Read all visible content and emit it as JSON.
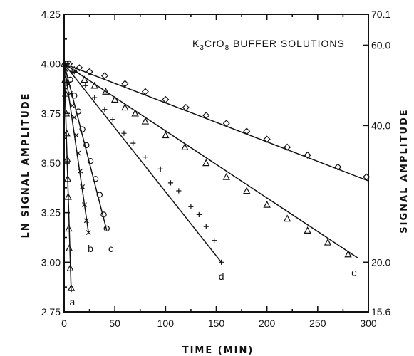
{
  "chart_data": {
    "type": "scatter",
    "title": "K3CrO8 BUFFER SOLUTIONS",
    "title_parts": {
      "k": "K",
      "sub3": "3",
      "cro": "CrO",
      "sub8": "8",
      "rest": " BUFFER SOLUTIONS"
    },
    "xlabel": "TIME (MIN)",
    "ylabel": "LN SIGNAL AMPLITUDE",
    "y2label": "SIGNAL AMPLITUDE",
    "xlim": [
      0,
      300
    ],
    "ylim": [
      2.75,
      4.25
    ],
    "x_ticks": [
      "0",
      "50",
      "100",
      "150",
      "200",
      "250",
      "300"
    ],
    "y_ticks": [
      "2.75",
      "3.00",
      "3.25",
      "3.50",
      "3.75",
      "4.00",
      "4.25"
    ],
    "y2_ticks": [
      {
        "label": "15.6",
        "ln": 2.75
      },
      {
        "label": "20.0",
        "ln": 3.0
      },
      {
        "label": "40.0",
        "ln": 3.689
      },
      {
        "label": "60.0",
        "ln": 4.094
      },
      {
        "label": "70.1",
        "ln": 4.25
      }
    ],
    "y2_scale": "log",
    "grid": false,
    "series": [
      {
        "label": "a",
        "marker": "triangle",
        "points": [
          [
            0,
            4.0
          ],
          [
            1,
            3.92
          ],
          [
            1.5,
            3.85
          ],
          [
            2,
            3.75
          ],
          [
            2.5,
            3.65
          ],
          [
            3,
            3.52
          ],
          [
            3.5,
            3.42
          ],
          [
            4,
            3.33
          ],
          [
            4.5,
            3.17
          ],
          [
            5,
            3.07
          ],
          [
            6,
            2.97
          ],
          [
            7,
            2.87
          ]
        ],
        "fit": [
          [
            0,
            4.0
          ],
          [
            7,
            2.85
          ]
        ],
        "label_at": [
          8,
          2.8
        ]
      },
      {
        "label": "b",
        "marker": "x",
        "points": [
          [
            2,
            3.97
          ],
          [
            4,
            3.9
          ],
          [
            6,
            3.85
          ],
          [
            8,
            3.79
          ],
          [
            10,
            3.73
          ],
          [
            12,
            3.64
          ],
          [
            14,
            3.55
          ],
          [
            16,
            3.46
          ],
          [
            18,
            3.38
          ],
          [
            20,
            3.29
          ],
          [
            22,
            3.21
          ],
          [
            24,
            3.15
          ]
        ],
        "fit": [
          [
            0,
            4.0
          ],
          [
            24,
            3.15
          ]
        ],
        "label_at": [
          26,
          3.07
        ]
      },
      {
        "label": "c",
        "marker": "circle",
        "points": [
          [
            2,
            4.0
          ],
          [
            6,
            3.92
          ],
          [
            10,
            3.84
          ],
          [
            14,
            3.76
          ],
          [
            18,
            3.67
          ],
          [
            22,
            3.59
          ],
          [
            26,
            3.51
          ],
          [
            31,
            3.42
          ],
          [
            35,
            3.34
          ],
          [
            39,
            3.24
          ],
          [
            42,
            3.17
          ]
        ],
        "fit": [
          [
            0,
            4.0
          ],
          [
            42,
            3.16
          ]
        ],
        "label_at": [
          46,
          3.07
        ]
      },
      {
        "label": "d",
        "marker": "plus",
        "points": [
          [
            10,
            3.96
          ],
          [
            21,
            3.89
          ],
          [
            30,
            3.83
          ],
          [
            40,
            3.77
          ],
          [
            48,
            3.72
          ],
          [
            59,
            3.65
          ],
          [
            68,
            3.6
          ],
          [
            80,
            3.53
          ],
          [
            95,
            3.47
          ],
          [
            105,
            3.4
          ],
          [
            113,
            3.36
          ],
          [
            125,
            3.28
          ],
          [
            133,
            3.24
          ],
          [
            140,
            3.18
          ],
          [
            148,
            3.11
          ],
          [
            155,
            3.0
          ]
        ],
        "fit": [
          [
            0,
            4.0
          ],
          [
            155,
            3.0
          ]
        ],
        "label_at": [
          155,
          2.93
        ]
      },
      {
        "label": "e",
        "marker": "triangle",
        "points": [
          [
            10,
            3.97
          ],
          [
            20,
            3.92
          ],
          [
            30,
            3.89
          ],
          [
            41,
            3.86
          ],
          [
            50,
            3.82
          ],
          [
            60,
            3.78
          ],
          [
            70,
            3.75
          ],
          [
            80,
            3.71
          ],
          [
            100,
            3.64
          ],
          [
            119,
            3.58
          ],
          [
            140,
            3.5
          ],
          [
            160,
            3.43
          ],
          [
            180,
            3.36
          ],
          [
            200,
            3.29
          ],
          [
            220,
            3.22
          ],
          [
            240,
            3.16
          ],
          [
            260,
            3.1
          ],
          [
            280,
            3.04
          ]
        ],
        "fit": [
          [
            0,
            4.0
          ],
          [
            290,
            3.02
          ]
        ],
        "label_at": [
          286,
          2.95
        ]
      },
      {
        "label": "",
        "marker": "diamond",
        "points": [
          [
            5,
            4.0
          ],
          [
            15,
            3.98
          ],
          [
            25,
            3.96
          ],
          [
            40,
            3.94
          ],
          [
            60,
            3.9
          ],
          [
            80,
            3.86
          ],
          [
            100,
            3.82
          ],
          [
            120,
            3.78
          ],
          [
            140,
            3.74
          ],
          [
            160,
            3.7
          ],
          [
            180,
            3.66
          ],
          [
            200,
            3.62
          ],
          [
            220,
            3.58
          ],
          [
            240,
            3.54
          ],
          [
            270,
            3.48
          ],
          [
            298,
            3.43
          ]
        ],
        "fit": [
          [
            0,
            4.0
          ],
          [
            300,
            3.41
          ]
        ]
      }
    ]
  }
}
